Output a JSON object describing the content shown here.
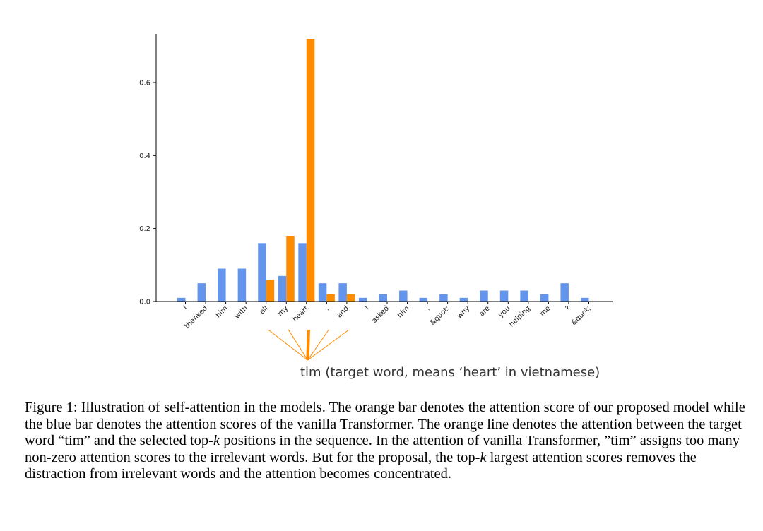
{
  "chart_data": {
    "type": "bar",
    "categories": [
      "I",
      "thanked",
      "him",
      "with",
      "all",
      "my",
      "heart",
      ",",
      "and",
      "I",
      "asked",
      "him",
      ",",
      "&quot;",
      "why",
      "are",
      "you",
      "helping",
      "me",
      "?",
      "&quot;"
    ],
    "series": [
      {
        "color": "#6495ed",
        "values": [
          0.01,
          0.05,
          0.09,
          0.09,
          0.16,
          0.07,
          0.16,
          0.05,
          0.05,
          0.01,
          0.02,
          0.03,
          0.01,
          0.02,
          0.01,
          0.03,
          0.03,
          0.03,
          0.02,
          0.05,
          0.01
        ]
      },
      {
        "color": "#ff8c00",
        "values": [
          0,
          0,
          0,
          0,
          0.06,
          0.18,
          0.72,
          0.02,
          0.02,
          0,
          0,
          0,
          0,
          0,
          0,
          0,
          0,
          0,
          0,
          0,
          0
        ]
      }
    ],
    "ylim": [
      0,
      0.72
    ],
    "yticks": [
      "0.0",
      "0.2",
      "0.4",
      "0.6"
    ],
    "ytick_values": [
      0,
      0.2,
      0.4,
      0.6
    ],
    "xlabel": "",
    "ylabel": "",
    "title": "",
    "grid": false,
    "attention_lines": {
      "target_label": "tim (target word, means ‘heart’ in vietnamese)",
      "line_color": "#ff8c00",
      "weights_by_category_index": {
        "4": 0.06,
        "5": 0.18,
        "6": 0.72,
        "7": 0.02,
        "8": 0.02
      }
    }
  },
  "caption": {
    "label": "Figure 1:",
    "sentence_1": "Illustration of self-attention in the models. The orange bar denotes the attention score of our proposed model while the blue bar denotes the attention scores of the vanilla Transformer. The orange line denotes the attention between the target word “tim” and the selected top-",
    "k_1": "k",
    "sentence_2": " positions in the sequence. In the attention of vanilla Transformer, ”tim” assigns too many non-zero attention scores to the irrelevant words. But for the proposal, the top-",
    "k_2": "k",
    "sentence_3": " largest attention scores removes the distraction from irrelevant words and the attention becomes concentrated."
  }
}
